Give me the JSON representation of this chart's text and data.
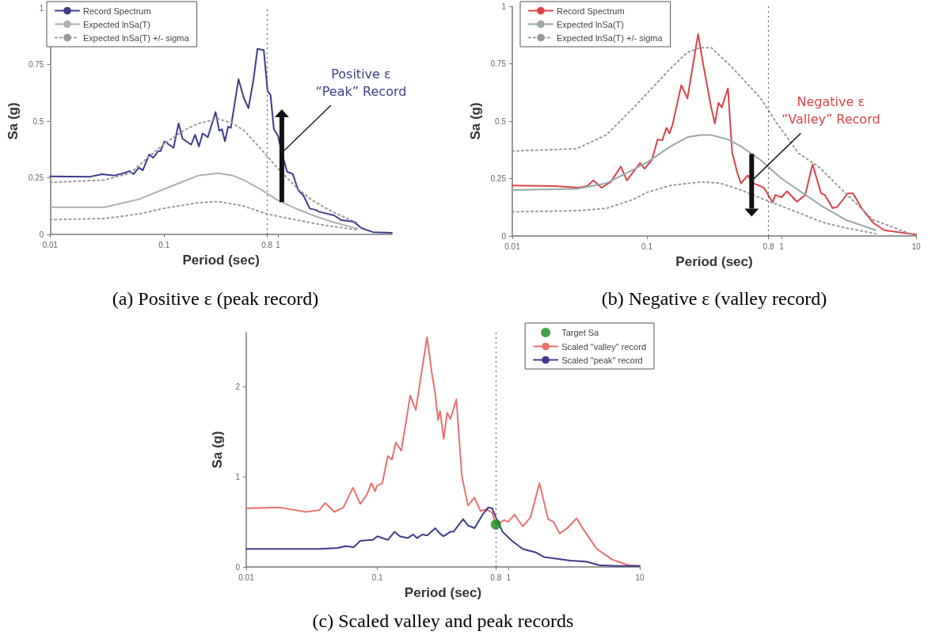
{
  "chart_data": [
    {
      "type": "line",
      "xlabel": "Period (sec)",
      "ylabel": "Sa (g)",
      "log": "x",
      "xlim": [
        0.01,
        10
      ],
      "xticks": [
        0.01,
        0.1,
        0.8,
        1
      ],
      "ylim": [
        0,
        1
      ],
      "yticks": [
        0,
        0.25,
        0.5,
        0.75,
        1
      ],
      "grid": false,
      "legend": "top left",
      "marker": "none",
      "line_style": "solid",
      "series": [
        {
          "name": "Record Spectrum",
          "color": "#3c3c8c",
          "x": [
            0.01,
            0.022,
            0.0285,
            0.0369,
            0.0453,
            0.05,
            0.054,
            0.06,
            0.065,
            0.074,
            0.08,
            0.089,
            0.093,
            0.101,
            0.121,
            0.134,
            0.145,
            0.173,
            0.187,
            0.202,
            0.218,
            0.242,
            0.283,
            0.305,
            0.322,
            0.342,
            0.365,
            0.385,
            0.45,
            0.5,
            0.55,
            0.61,
            0.66,
            0.75,
            0.81,
            0.86,
            0.92,
            1.0,
            1.08,
            1.2,
            1.35,
            1.5,
            1.67,
            1.9,
            2.15,
            2.29,
            3.1,
            3.6,
            4.6,
            5.4,
            6.8,
            10
          ],
          "values": [
            0.256,
            0.254,
            0.266,
            0.26,
            0.272,
            0.28,
            0.266,
            0.295,
            0.283,
            0.353,
            0.338,
            0.368,
            0.368,
            0.411,
            0.382,
            0.49,
            0.423,
            0.396,
            0.44,
            0.388,
            0.446,
            0.429,
            0.54,
            0.458,
            0.464,
            0.411,
            0.476,
            0.47,
            0.685,
            0.604,
            0.557,
            0.685,
            0.819,
            0.814,
            0.633,
            0.615,
            0.464,
            0.435,
            0.359,
            0.277,
            0.266,
            0.196,
            0.172,
            0.114,
            0.108,
            0.1,
            0.084,
            0.063,
            0.056,
            0.028,
            0.01,
            0.007
          ]
        },
        {
          "name": "Expected lnSa(T)",
          "color": "#b0b0b0",
          "x": [
            0.01,
            0.03,
            0.06,
            0.1,
            0.15,
            0.2,
            0.3,
            0.4,
            0.5,
            0.7,
            1,
            1.5,
            2,
            3,
            5
          ],
          "values": [
            0.12,
            0.12,
            0.155,
            0.2,
            0.235,
            0.26,
            0.27,
            0.26,
            0.24,
            0.2,
            0.15,
            0.11,
            0.085,
            0.055,
            0.025
          ]
        },
        {
          "name": "Expected lnSa(T) +/- sigma",
          "color": "#999999",
          "line_style": "dotted",
          "x": [
            0.01,
            0.03,
            0.05,
            0.1,
            0.15,
            0.2,
            0.3,
            0.4,
            0.5,
            0.7,
            1,
            1.5,
            2,
            3,
            5
          ],
          "values": [
            0.23,
            0.24,
            0.27,
            0.4,
            0.46,
            0.49,
            0.51,
            0.49,
            0.46,
            0.38,
            0.29,
            0.2,
            0.15,
            0.1,
            0.05
          ]
        },
        {
          "color": "#999999",
          "line_style": "dotted",
          "x": [
            0.01,
            0.03,
            0.06,
            0.1,
            0.2,
            0.3,
            0.5,
            0.8,
            1,
            2,
            3,
            5
          ],
          "values": [
            0.065,
            0.07,
            0.09,
            0.115,
            0.14,
            0.145,
            0.125,
            0.09,
            0.08,
            0.05,
            0.035,
            0.02
          ]
        }
      ],
      "ref_lines": [
        {
          "axis": "x",
          "value": 0.8,
          "line_style": "dotted",
          "color": "#666666"
        }
      ],
      "annotations": [
        {
          "text": "Positive ε\n“Peak” Record",
          "x": 1.08,
          "y": 0.36
        },
        "(a) Positive ε (peak record)"
      ]
    },
    {
      "type": "line",
      "xlabel": "Period (sec)",
      "ylabel": "Sa (g)",
      "log": "x",
      "xlim": [
        0.01,
        10
      ],
      "xticks": [
        0.01,
        0.1,
        0.8,
        1,
        10
      ],
      "ylim": [
        0,
        1
      ],
      "yticks": [
        0,
        0.25,
        0.5,
        0.75,
        1
      ],
      "grid": false,
      "legend": "top left",
      "marker": "none",
      "line_style": "solid",
      "series": [
        {
          "name": "Record Spectrum",
          "color": "#d9434a",
          "x": [
            0.01,
            0.0207,
            0.031,
            0.036,
            0.04,
            0.046,
            0.054,
            0.064,
            0.071,
            0.089,
            0.096,
            0.109,
            0.12,
            0.13,
            0.14,
            0.147,
            0.155,
            0.18,
            0.2,
            0.24,
            0.26,
            0.28,
            0.3,
            0.32,
            0.34,
            0.36,
            0.4,
            0.43,
            0.47,
            0.5,
            0.56,
            0.62,
            0.66,
            0.74,
            0.86,
            0.9,
            1.0,
            1.1,
            1.3,
            1.5,
            1.7,
            1.97,
            2.1,
            2.4,
            2.6,
            3.1,
            3.4,
            4.0,
            4.8,
            5.8,
            10
          ],
          "values": [
            0.22,
            0.217,
            0.21,
            0.217,
            0.242,
            0.21,
            0.236,
            0.302,
            0.242,
            0.318,
            0.293,
            0.331,
            0.42,
            0.417,
            0.471,
            0.446,
            0.484,
            0.656,
            0.599,
            0.879,
            0.758,
            0.656,
            0.56,
            0.49,
            0.58,
            0.56,
            0.643,
            0.363,
            0.274,
            0.229,
            0.264,
            0.229,
            0.223,
            0.21,
            0.146,
            0.178,
            0.169,
            0.195,
            0.149,
            0.178,
            0.312,
            0.185,
            0.178,
            0.121,
            0.127,
            0.185,
            0.185,
            0.115,
            0.057,
            0.025,
            0.006
          ]
        },
        {
          "name": "Expected lnSa(T)",
          "color": "#9aa8a8",
          "x": [
            0.01,
            0.03,
            0.05,
            0.08,
            0.1,
            0.15,
            0.2,
            0.25,
            0.3,
            0.4,
            0.5,
            0.7,
            1,
            1.5,
            2,
            3,
            4,
            5
          ],
          "values": [
            0.2,
            0.205,
            0.23,
            0.29,
            0.32,
            0.39,
            0.43,
            0.44,
            0.44,
            0.42,
            0.39,
            0.33,
            0.25,
            0.18,
            0.13,
            0.07,
            0.045,
            0.025
          ]
        },
        {
          "name": "Expected lnSa(T) +/- sigma",
          "color": "#999999",
          "line_style": "dotted",
          "x": [
            0.01,
            0.03,
            0.05,
            0.08,
            0.1,
            0.15,
            0.2,
            0.25,
            0.3,
            0.42,
            0.7,
            0.9,
            1.34,
            1.9,
            3,
            4.8,
            9.4
          ],
          "values": [
            0.37,
            0.38,
            0.44,
            0.56,
            0.62,
            0.73,
            0.8,
            0.82,
            0.82,
            0.74,
            0.6,
            0.5,
            0.36,
            0.3,
            0.185,
            0.07,
            0.006
          ]
        },
        {
          "color": "#999999",
          "line_style": "dotted",
          "x": [
            0.01,
            0.03,
            0.05,
            0.08,
            0.1,
            0.15,
            0.25,
            0.35,
            0.5,
            0.7,
            1,
            1.5,
            2,
            3,
            5
          ],
          "values": [
            0.105,
            0.11,
            0.12,
            0.16,
            0.19,
            0.22,
            0.235,
            0.23,
            0.2,
            0.165,
            0.13,
            0.09,
            0.06,
            0.035,
            0.01
          ]
        }
      ],
      "ref_lines": [
        {
          "axis": "x",
          "value": 0.8,
          "line_style": "dotted",
          "color": "#666666"
        }
      ],
      "annotations": [
        {
          "text": "Negative ε\n“Valley” Record",
          "x": 0.6,
          "y": 0.24
        },
        "(b) Negative ε (valley record)"
      ]
    },
    {
      "type": "line",
      "xlabel": "Period (sec)",
      "ylabel": "Sa (g)",
      "log": "x",
      "xlim": [
        0.01,
        10
      ],
      "xticks": [
        0.01,
        0.1,
        0.8,
        1,
        10
      ],
      "ylim": [
        0,
        2.6
      ],
      "yticks": [
        0,
        1,
        2
      ],
      "grid": false,
      "legend": "top right",
      "marker": "none",
      "line_style": "solid",
      "series": [
        {
          "name": "Target Sa",
          "type": "scatter",
          "marker": "circle",
          "color": "#1a8a1a",
          "x": [
            0.8
          ],
          "values": [
            0.47
          ]
        },
        {
          "name": "Scaled \"valley\" record",
          "color": "#e87070",
          "x": [
            0.01,
            0.0179,
            0.0285,
            0.036,
            0.04,
            0.047,
            0.055,
            0.065,
            0.074,
            0.083,
            0.09,
            0.096,
            0.099,
            0.109,
            0.12,
            0.129,
            0.138,
            0.152,
            0.178,
            0.196,
            0.239,
            0.26,
            0.276,
            0.29,
            0.3,
            0.32,
            0.34,
            0.36,
            0.4,
            0.44,
            0.49,
            0.55,
            0.61,
            0.68,
            0.75,
            0.8,
            0.93,
            0.99,
            1.11,
            1.28,
            1.47,
            1.72,
            2.0,
            2.2,
            2.45,
            2.8,
            3.3,
            3.7,
            4.7,
            6.2,
            8.2,
            10
          ],
          "values": [
            0.65,
            0.66,
            0.61,
            0.63,
            0.71,
            0.61,
            0.66,
            0.88,
            0.7,
            0.8,
            0.93,
            0.84,
            0.9,
            0.93,
            1.23,
            1.19,
            1.38,
            1.29,
            1.9,
            1.74,
            2.55,
            2.15,
            1.92,
            1.63,
            1.73,
            1.42,
            1.71,
            1.64,
            1.86,
            1.01,
            0.68,
            0.77,
            0.62,
            0.64,
            0.6,
            0.47,
            0.52,
            0.5,
            0.58,
            0.45,
            0.55,
            0.93,
            0.53,
            0.5,
            0.37,
            0.43,
            0.54,
            0.42,
            0.2,
            0.08,
            0.02,
            0.01
          ]
        },
        {
          "name": "Scaled \"peak\" record",
          "color": "#3c3c8c",
          "x": [
            0.01,
            0.0225,
            0.036,
            0.05,
            0.057,
            0.066,
            0.074,
            0.092,
            0.1,
            0.12,
            0.135,
            0.148,
            0.17,
            0.187,
            0.2,
            0.22,
            0.24,
            0.276,
            0.3,
            0.318,
            0.36,
            0.38,
            0.45,
            0.49,
            0.55,
            0.64,
            0.7,
            0.75,
            0.8,
            0.9,
            1.06,
            1.28,
            1.62,
            1.86,
            2.35,
            2.97,
            3.9,
            4.9,
            6.5,
            10
          ],
          "values": [
            0.2,
            0.2,
            0.2,
            0.21,
            0.23,
            0.22,
            0.29,
            0.3,
            0.34,
            0.3,
            0.39,
            0.34,
            0.32,
            0.36,
            0.32,
            0.36,
            0.35,
            0.43,
            0.37,
            0.34,
            0.39,
            0.39,
            0.53,
            0.46,
            0.43,
            0.59,
            0.66,
            0.65,
            0.55,
            0.39,
            0.29,
            0.2,
            0.16,
            0.11,
            0.09,
            0.07,
            0.06,
            0.02,
            0.01,
            0.01
          ]
        }
      ],
      "ref_lines": [
        {
          "axis": "x",
          "value": 0.8,
          "line_style": "dotted",
          "color": "#666666"
        }
      ],
      "annotations": [
        "(c) Scaled valley and peak records"
      ]
    }
  ]
}
